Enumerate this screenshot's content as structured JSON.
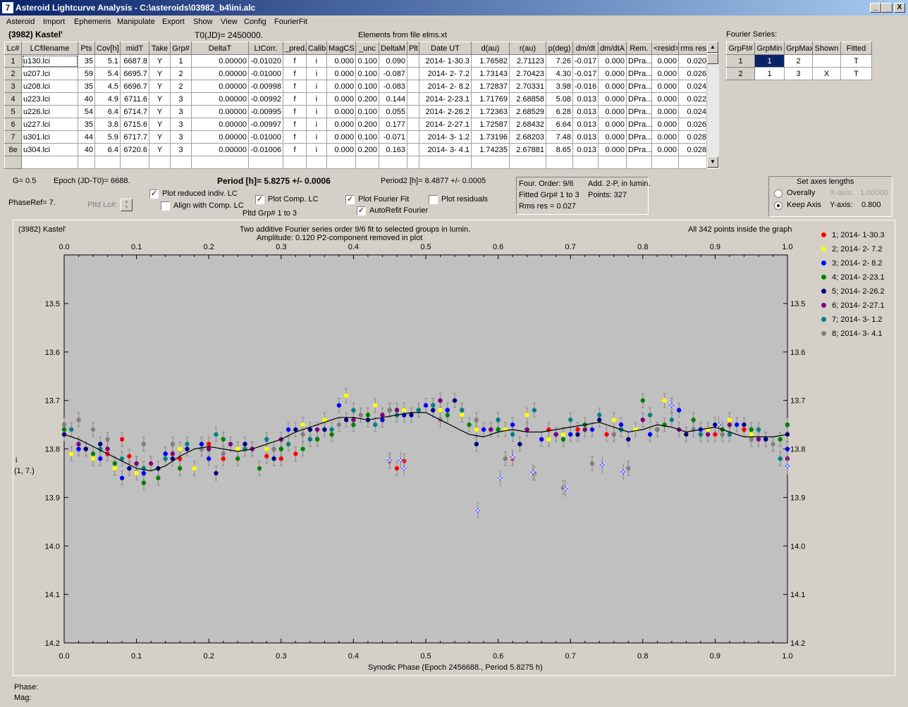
{
  "window": {
    "title": "Asteroid Lightcurve Analysis - C:\\asteroids\\03982_b4\\ini.alc",
    "minimize": "_",
    "restore": "\u0019",
    "close": "X",
    "icon_glyph": "7"
  },
  "menu": [
    "Asteroid",
    "Import",
    "Ephemeris",
    "Manipulate",
    "Export",
    "Show",
    "View",
    "Config",
    "FourierFit"
  ],
  "header": {
    "asteroid_name": "(3982) Kastel'",
    "t0": "T0(JD)= 2450000.",
    "elements": "Elements from file elms.xt",
    "fourier_series_label": "Fourier Series:"
  },
  "lc_table": {
    "columns": [
      "Lc#",
      "LCfilename",
      "Pts",
      "Cov[h]",
      "midT",
      "Take",
      "Grp#",
      "DeltaT",
      "LtCorr.",
      "_pred.",
      "Calib",
      "MagCS",
      "_unc",
      "DeltaM",
      "Plt",
      "Date UT",
      "d(au)",
      "r(au)",
      "p(deg)",
      "dm/dt",
      "dm/dtA",
      "Rem.",
      "<resid>",
      "rms res"
    ],
    "rows": [
      [
        "1",
        "u130.lci",
        "35",
        "5.1",
        "6687.8",
        "Y",
        "1",
        "0.00000",
        "-0.01020",
        "f",
        "i",
        "0.000",
        "0.100",
        "0.090",
        "",
        "2014- 1-30.3",
        "1.76582",
        "2.71123",
        "7.26",
        "-0.017",
        "0.000",
        "DPra...",
        "0.000",
        "0.020"
      ],
      [
        "2",
        "u207.lci",
        "59",
        "5.4",
        "6695.7",
        "Y",
        "2",
        "0.00000",
        "-0.01000",
        "f",
        "i",
        "0.000",
        "0.100",
        "-0.087",
        "",
        "2014- 2- 7.2",
        "1.73143",
        "2.70423",
        "4.30",
        "-0.017",
        "0.000",
        "DPra...",
        "0.000",
        "0.026"
      ],
      [
        "3",
        "u208.lci",
        "35",
        "4.5",
        "6696.7",
        "Y",
        "2",
        "0.00000",
        "-0.00998",
        "f",
        "i",
        "0.000",
        "0.100",
        "-0.083",
        "",
        "2014- 2- 8.2",
        "1.72837",
        "2.70331",
        "3.98",
        "-0.016",
        "0.000",
        "DPra...",
        "0.000",
        "0.024"
      ],
      [
        "4",
        "u223.lci",
        "40",
        "4.9",
        "6711.6",
        "Y",
        "3",
        "0.00000",
        "-0.00992",
        "f",
        "i",
        "0.000",
        "0.200",
        "0.144",
        "",
        "2014- 2-23.1",
        "1.71769",
        "2.68858",
        "5.08",
        "0.013",
        "0.000",
        "DPra...",
        "0.000",
        "0.022"
      ],
      [
        "5",
        "u226.lci",
        "54",
        "6.4",
        "6714.7",
        "Y",
        "3",
        "0.00000",
        "-0.00995",
        "f",
        "i",
        "0.000",
        "0.100",
        "0.055",
        "",
        "2014- 2-26.2",
        "1.72363",
        "2.68529",
        "6.28",
        "0.013",
        "0.000",
        "DPra...",
        "0.000",
        "0.024"
      ],
      [
        "6",
        "u227.lci",
        "35",
        "3.8",
        "6715.6",
        "Y",
        "3",
        "0.00000",
        "-0.00997",
        "f",
        "i",
        "0.000",
        "0.200",
        "0.177",
        "",
        "2014- 2-27.1",
        "1.72587",
        "2.68432",
        "6.64",
        "0.013",
        "0.000",
        "DPra...",
        "0.000",
        "0.026"
      ],
      [
        "7",
        "u301.lci",
        "44",
        "5.9",
        "6717.7",
        "Y",
        "3",
        "0.00000",
        "-0.01000",
        "f",
        "i",
        "0.000",
        "0.100",
        "-0.071",
        "",
        "2014- 3- 1.2",
        "1.73196",
        "2.68203",
        "7.48",
        "0.013",
        "0.000",
        "DPra...",
        "0.000",
        "0.028"
      ],
      [
        "8e",
        "u304.lci",
        "40",
        "6.4",
        "6720.6",
        "Y",
        "3",
        "0.00000",
        "-0.01006",
        "f",
        "i",
        "0.000",
        "0.200",
        "0.163",
        "",
        "2014- 3- 4.1",
        "1.74235",
        "2.67881",
        "8.65",
        "0.013",
        "0.000",
        "DPra...",
        "0.000",
        "0.028"
      ]
    ]
  },
  "fourier_table": {
    "columns": [
      "GrpFt#",
      "GrpMin",
      "GrpMax",
      "Shown",
      "Fitted"
    ],
    "rows": [
      [
        "1",
        "1",
        "2",
        "",
        "T"
      ],
      [
        "2",
        "1",
        "3",
        "X",
        "T"
      ]
    ]
  },
  "controls": {
    "g_label": "G= 0.5",
    "epoch_label": "Epoch (JD-T0)= 6688.",
    "period_label": "Period [h]= 5.8275 +/- 0.0006",
    "period2_label": "Period2 [h]= 8.4877 +/- 0.0005",
    "phaseref_label": "PhaseRef= 7.",
    "pltd_lc_label": "Pltd Lc#:",
    "pltd_grp_label": "Pltd Grp#  1   to   3",
    "plot_reduced": {
      "label": "Plot reduced indiv. LC",
      "checked": true
    },
    "align_comp": {
      "label": "Align with Comp. LC",
      "checked": false
    },
    "plot_comp": {
      "label": "Plot Comp. LC",
      "checked": true
    },
    "plot_fourier": {
      "label": "Plot Fourier Fit",
      "checked": true
    },
    "autorefit": {
      "label": "AutoRefit Fourier",
      "checked": true
    },
    "plot_residuals": {
      "label": "Plot residuals",
      "checked": false
    },
    "check_glyph": "✓",
    "four_order": "Four. Order:  9/6",
    "add_2p": "Add. 2-P, in lumin.",
    "fitted_grp": "Fitted Grp# 1 to 3",
    "points": "Points: 327",
    "rms_res": "Rms res     = 0.027",
    "axes_title": "Set axes lengths",
    "overally": "Overally",
    "keep_axis": "Keep Axis",
    "x_axis_label": "X-axis:",
    "x_axis_value": "1.00000",
    "y_axis_label": "Y-axis:",
    "y_axis_value": "0.800"
  },
  "plot": {
    "left_title": "(3982) Kastel'",
    "center_title_1": "Two additive Fourier series order 9/6 fit to selected groups in lumin.",
    "center_title_2": "Amplitude: 0.120          P2-component removed in plot",
    "right_title": "All 342 points inside the graph",
    "xlabel": "Synodic Phase (Epoch 2456688., Period 5.8275 h)",
    "ylabel_1": "i",
    "ylabel_2": "(1, 7.)",
    "legend": [
      {
        "label": "1; 2014- 1-30.3",
        "color": "#ff0000"
      },
      {
        "label": "2; 2014- 2- 7.2",
        "color": "#ffff00"
      },
      {
        "label": "3; 2014- 2- 8.2",
        "color": "#0000ff"
      },
      {
        "label": "4; 2014- 2-23.1",
        "color": "#008000"
      },
      {
        "label": "5; 2014- 2-26.2",
        "color": "#000080"
      },
      {
        "label": "6; 2014- 2-27.1",
        "color": "#800080"
      },
      {
        "label": "7; 2014- 3- 1.2",
        "color": "#008080"
      },
      {
        "label": "8; 2014- 3- 4.1",
        "color": "#808080"
      }
    ]
  },
  "status": {
    "phase": "Phase:",
    "mag": "Mag:"
  },
  "chart_data": {
    "type": "scatter",
    "xlim": [
      0.0,
      1.0
    ],
    "ylim": [
      14.2,
      13.4
    ],
    "x_ticks": [
      "0.0",
      "0.1",
      "0.2",
      "0.3",
      "0.4",
      "0.5",
      "0.6",
      "0.7",
      "0.8",
      "0.9",
      "1.0"
    ],
    "y_ticks": [
      "13.5",
      "13.6",
      "13.7",
      "13.8",
      "13.9",
      "14.0",
      "14.1",
      "14.2"
    ],
    "grid": false,
    "legend_position": "right",
    "fit_curve": {
      "name": "Fourier fit",
      "x": [
        0.0,
        0.02,
        0.04,
        0.06,
        0.08,
        0.1,
        0.12,
        0.14,
        0.16,
        0.18,
        0.2,
        0.22,
        0.24,
        0.26,
        0.28,
        0.3,
        0.32,
        0.34,
        0.36,
        0.38,
        0.4,
        0.42,
        0.44,
        0.46,
        0.48,
        0.5,
        0.52,
        0.54,
        0.56,
        0.58,
        0.6,
        0.62,
        0.64,
        0.66,
        0.68,
        0.7,
        0.72,
        0.74,
        0.76,
        0.78,
        0.8,
        0.82,
        0.84,
        0.86,
        0.88,
        0.9,
        0.92,
        0.94,
        0.96,
        0.98,
        1.0
      ],
      "y": [
        13.77,
        13.78,
        13.795,
        13.81,
        13.825,
        13.84,
        13.845,
        13.835,
        13.815,
        13.8,
        13.795,
        13.8,
        13.805,
        13.8,
        13.79,
        13.78,
        13.765,
        13.755,
        13.745,
        13.735,
        13.735,
        13.74,
        13.735,
        13.73,
        13.725,
        13.725,
        13.74,
        13.755,
        13.77,
        13.775,
        13.765,
        13.76,
        13.765,
        13.765,
        13.76,
        13.755,
        13.75,
        13.745,
        13.755,
        13.765,
        13.76,
        13.75,
        13.755,
        13.765,
        13.76,
        13.755,
        13.765,
        13.775,
        13.775,
        13.775,
        13.77
      ]
    },
    "series": [
      {
        "name": "1; 2014- 1-30.3",
        "color": "#ff0000",
        "x": [
          0.03,
          0.06,
          0.08,
          0.09,
          0.14,
          0.16,
          0.2,
          0.22,
          0.25,
          0.28,
          0.3,
          0.32,
          0.45,
          0.47,
          0.46,
          0.62,
          0.67,
          0.71,
          0.75,
          0.84,
          0.9,
          0.94,
          1.0
        ],
        "y": [
          13.8,
          13.81,
          13.78,
          13.815,
          13.81,
          13.82,
          13.79,
          13.82,
          13.8,
          13.815,
          13.82,
          13.81,
          13.825,
          13.825,
          13.84,
          13.82,
          13.76,
          13.76,
          13.77,
          13.71,
          13.77,
          13.76,
          13.75
        ]
      },
      {
        "name": "2; 2014- 2- 7.2",
        "color": "#ffff00",
        "x": [
          0.01,
          0.04,
          0.07,
          0.1,
          0.12,
          0.16,
          0.18,
          0.24,
          0.28,
          0.33,
          0.36,
          0.39,
          0.41,
          0.43,
          0.47,
          0.52,
          0.55,
          0.57,
          0.61,
          0.64,
          0.67,
          0.69,
          0.73,
          0.76,
          0.79,
          0.83,
          0.86,
          0.89,
          0.92,
          0.95,
          0.98
        ],
        "y": [
          13.81,
          13.82,
          13.84,
          13.85,
          13.83,
          13.8,
          13.84,
          13.8,
          13.8,
          13.75,
          13.74,
          13.69,
          13.73,
          13.71,
          13.72,
          13.72,
          13.73,
          13.76,
          13.76,
          13.73,
          13.78,
          13.77,
          13.76,
          13.74,
          13.76,
          13.7,
          13.77,
          13.76,
          13.74,
          13.77,
          13.79
        ]
      },
      {
        "name": "3; 2014- 2- 8.2",
        "color": "#0000ff",
        "x": [
          0.02,
          0.05,
          0.08,
          0.11,
          0.14,
          0.19,
          0.2,
          0.26,
          0.31,
          0.38,
          0.44,
          0.47,
          0.5,
          0.53,
          0.58,
          0.62,
          0.66,
          0.7,
          0.73,
          0.77,
          0.81,
          0.85,
          0.88,
          0.93,
          0.97,
          1.0
        ],
        "y": [
          13.8,
          13.82,
          13.86,
          13.85,
          13.81,
          13.79,
          13.82,
          13.8,
          13.76,
          13.71,
          13.74,
          13.73,
          13.71,
          13.72,
          13.76,
          13.75,
          13.78,
          13.77,
          13.76,
          13.75,
          13.77,
          13.72,
          13.76,
          13.75,
          13.78,
          13.8
        ]
      },
      {
        "name": "4; 2014- 2-23.1",
        "color": "#008000",
        "x": [
          0.0,
          0.04,
          0.07,
          0.1,
          0.11,
          0.13,
          0.16,
          0.19,
          0.22,
          0.24,
          0.27,
          0.3,
          0.33,
          0.35,
          0.37,
          0.4,
          0.42,
          0.45,
          0.53,
          0.56,
          0.6,
          0.64,
          0.69,
          0.72,
          0.77,
          0.8,
          0.83,
          0.87,
          0.91,
          0.95,
          0.99,
          1.0
        ],
        "y": [
          13.76,
          13.81,
          13.83,
          13.83,
          13.87,
          13.86,
          13.84,
          13.8,
          13.78,
          13.82,
          13.84,
          13.8,
          13.8,
          13.78,
          13.77,
          13.75,
          13.73,
          13.72,
          13.73,
          13.75,
          13.76,
          13.76,
          13.78,
          13.75,
          13.76,
          13.7,
          13.75,
          13.74,
          13.76,
          13.76,
          13.78,
          13.75
        ]
      },
      {
        "name": "5; 2014- 2-26.2",
        "color": "#000080",
        "x": [
          0.0,
          0.03,
          0.05,
          0.09,
          0.13,
          0.15,
          0.17,
          0.21,
          0.25,
          0.29,
          0.32,
          0.34,
          0.36,
          0.39,
          0.42,
          0.48,
          0.51,
          0.54,
          0.57,
          0.59,
          0.63,
          0.68,
          0.71,
          0.74,
          0.78,
          0.82,
          0.86,
          0.9,
          0.94,
          0.97,
          1.0
        ],
        "y": [
          13.77,
          13.8,
          13.79,
          13.84,
          13.84,
          13.82,
          13.8,
          13.85,
          13.79,
          13.82,
          13.76,
          13.76,
          13.76,
          13.74,
          13.74,
          13.73,
          13.72,
          13.7,
          13.79,
          13.76,
          13.79,
          13.77,
          13.77,
          13.74,
          13.78,
          13.76,
          13.77,
          13.75,
          13.75,
          13.78,
          13.77
        ]
      },
      {
        "name": "6; 2014- 2-27.1",
        "color": "#800080",
        "x": [
          0.02,
          0.06,
          0.1,
          0.12,
          0.15,
          0.2,
          0.23,
          0.26,
          0.3,
          0.35,
          0.4,
          0.44,
          0.46,
          0.49,
          0.52,
          0.55,
          0.59,
          0.64,
          0.68,
          0.72,
          0.76,
          0.8,
          0.85,
          0.89,
          0.92,
          0.96,
          1.0
        ],
        "y": [
          13.79,
          13.8,
          13.83,
          13.83,
          13.81,
          13.8,
          13.79,
          13.8,
          13.78,
          13.76,
          13.74,
          13.73,
          13.72,
          13.72,
          13.7,
          13.72,
          13.76,
          13.76,
          13.77,
          13.76,
          13.77,
          13.74,
          13.76,
          13.77,
          13.75,
          13.78,
          13.82
        ]
      },
      {
        "name": "7; 2014- 3- 1.2",
        "color": "#008080",
        "x": [
          0.01,
          0.05,
          0.08,
          0.11,
          0.14,
          0.17,
          0.21,
          0.25,
          0.28,
          0.31,
          0.34,
          0.37,
          0.4,
          0.43,
          0.46,
          0.49,
          0.51,
          0.55,
          0.6,
          0.62,
          0.65,
          0.7,
          0.74,
          0.77,
          0.81,
          0.84,
          0.88,
          0.92,
          0.96,
          0.99
        ],
        "y": [
          13.76,
          13.8,
          13.82,
          13.84,
          13.82,
          13.79,
          13.77,
          13.8,
          13.78,
          13.79,
          13.78,
          13.76,
          13.72,
          13.75,
          13.73,
          13.72,
          13.71,
          13.72,
          13.74,
          13.77,
          13.72,
          13.74,
          13.73,
          13.76,
          13.73,
          13.74,
          13.77,
          13.77,
          13.76,
          13.82
        ]
      },
      {
        "name": "8; 2014- 3- 4.1",
        "color": "#808080",
        "x": [
          0.0,
          0.02,
          0.04,
          0.06,
          0.11,
          0.15,
          0.19,
          0.22,
          0.29,
          0.33,
          0.38,
          0.41,
          0.45,
          0.52,
          0.57,
          0.61,
          0.65,
          0.69,
          0.73,
          0.76,
          0.78,
          0.82,
          0.87,
          0.91,
          0.95,
          0.98
        ],
        "y": [
          13.75,
          13.74,
          13.76,
          13.78,
          13.79,
          13.79,
          13.8,
          13.81,
          13.8,
          13.77,
          13.75,
          13.73,
          13.72,
          13.74,
          13.74,
          13.82,
          13.85,
          13.88,
          13.83,
          13.77,
          13.84,
          13.76,
          13.76,
          13.77,
          13.78,
          13.79
        ]
      }
    ],
    "highlighted_points": {
      "x": [
        0.45,
        0.465,
        0.47,
        0.572,
        0.603,
        0.62,
        0.648,
        0.693,
        0.744,
        0.773,
        0.84,
        0.905,
        1.0
      ],
      "y": [
        13.823,
        13.823,
        13.84,
        13.927,
        13.86,
        13.817,
        13.848,
        13.882,
        13.833,
        13.847,
        13.71,
        13.75,
        13.835
      ]
    }
  }
}
